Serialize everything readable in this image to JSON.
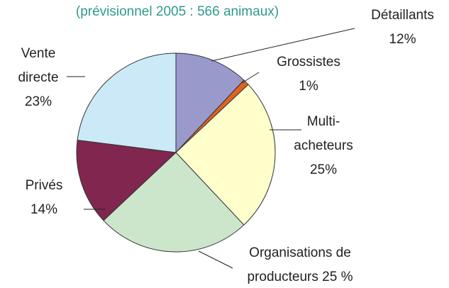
{
  "chart_data": {
    "type": "pie",
    "title": "(prévisionnel 2005 : 566 animaux)",
    "categories": [
      "Détaillants",
      "Grossistes",
      "Multi-acheteurs",
      "Organisations de producteurs",
      "Privés",
      "Vente directe"
    ],
    "values": [
      12,
      1,
      25,
      25,
      14,
      23
    ],
    "value_labels": [
      "12%",
      "1%",
      "25%",
      "25 %",
      "14%",
      "23%"
    ],
    "colors": [
      "#9999cc",
      "#e0641e",
      "#ffffcc",
      "#cce6cc",
      "#80264f",
      "#cce9f8"
    ]
  }
}
